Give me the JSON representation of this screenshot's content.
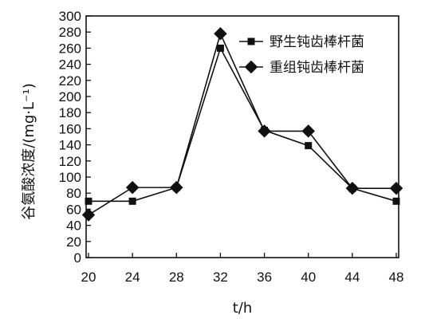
{
  "chart_data": {
    "type": "line",
    "title": "",
    "xlabel": "t/h",
    "ylabel": "谷氨酸浓度/(mg·L⁻¹)",
    "x": [
      20,
      24,
      28,
      32,
      36,
      40,
      44,
      48
    ],
    "xlim": [
      20,
      48
    ],
    "ylim": [
      0,
      300
    ],
    "yticks": [
      0,
      20,
      40,
      60,
      80,
      100,
      120,
      140,
      160,
      180,
      200,
      220,
      240,
      260,
      280,
      300
    ],
    "xticks": [
      20,
      24,
      28,
      32,
      36,
      40,
      44,
      48
    ],
    "grid": false,
    "legend": "top-right",
    "series": [
      {
        "name": "野生钝齿棒杆菌",
        "marker": "square",
        "values": [
          70,
          70,
          87,
          260,
          158,
          139,
          86,
          70
        ]
      },
      {
        "name": "重组钝齿棒杆菌",
        "marker": "diamond",
        "values": [
          53,
          87,
          87,
          278,
          157,
          157,
          86,
          86
        ]
      }
    ]
  }
}
